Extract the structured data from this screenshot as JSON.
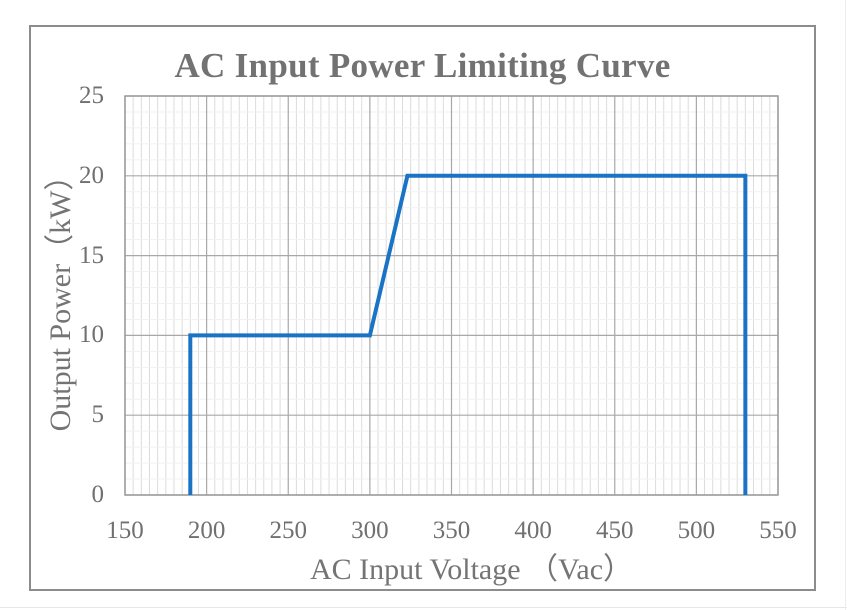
{
  "chart_data": {
    "type": "line",
    "title": "AC Input Power Limiting Curve",
    "xlabel": "AC Input Voltage （Vac）",
    "ylabel": "Output Power（kW）",
    "xlim": [
      150,
      550
    ],
    "ylim": [
      0,
      25
    ],
    "x_ticks": [
      150,
      200,
      250,
      300,
      350,
      400,
      450,
      500,
      550
    ],
    "y_ticks": [
      0,
      5,
      10,
      15,
      20,
      25
    ],
    "x_minor_step": 5,
    "y_minor_step": 1,
    "grid": true,
    "legend": "none",
    "series": [
      {
        "name": "Output Power",
        "color": "#1a73c5",
        "x": [
          190,
          190,
          300,
          323,
          530,
          530
        ],
        "y": [
          0,
          10,
          10,
          20,
          20,
          0
        ]
      }
    ]
  },
  "colors": {
    "line": "#1a73c5",
    "text": "#707070",
    "frame": "#8c8c8c",
    "major_grid": "#a8a8a8",
    "minor_grid": "#dcdcdc"
  }
}
